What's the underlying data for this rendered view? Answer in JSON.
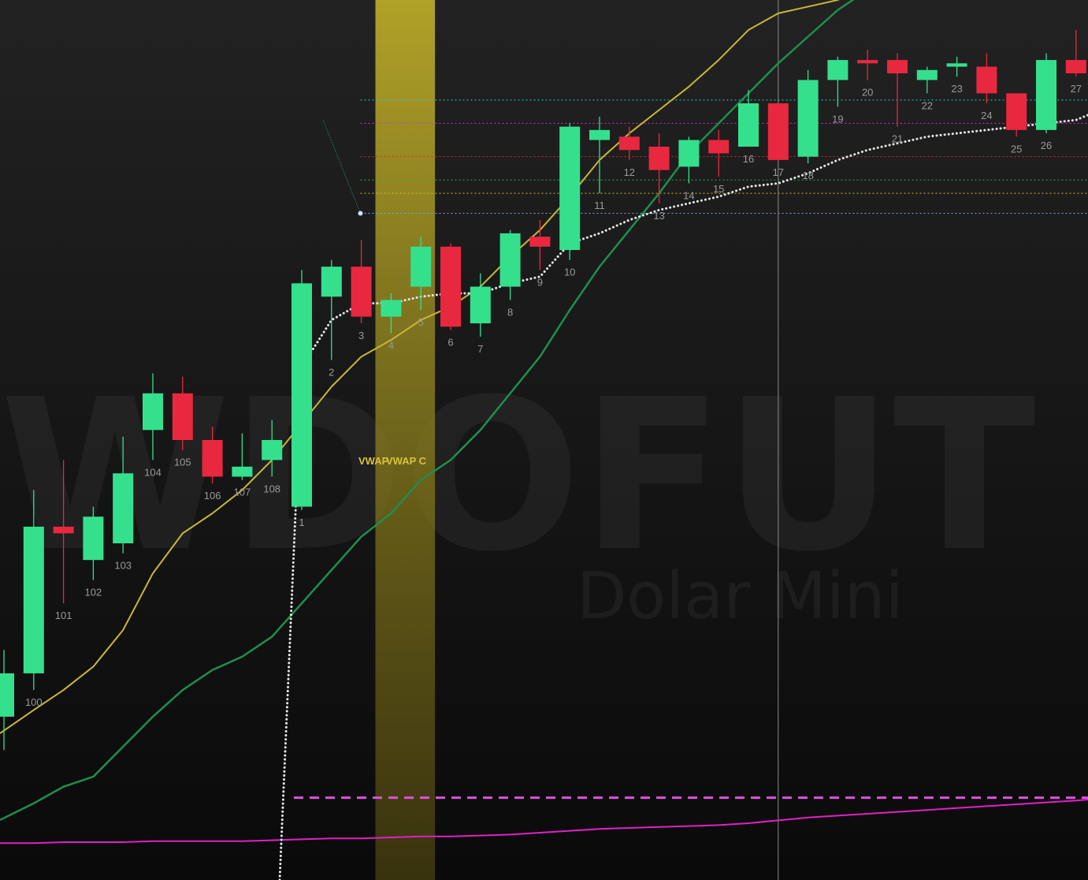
{
  "symbol": {
    "watermark": "WDOFUT 5",
    "subtitle": "Dolar Mini"
  },
  "colors": {
    "up": "#35e08d",
    "down": "#e8283f",
    "ema_fast": "#c7b737",
    "ema_slow": "#1f8e4d",
    "vwap": "#e6e6e6",
    "highlight": "#c9b526",
    "indicator": "#e020c8",
    "indicator_dashed": "#e050e0",
    "blue_segment": "#3a6fd0",
    "cursor": "#8a8a8a"
  },
  "vwap_labels": [
    "VWAP",
    "VWAP C"
  ],
  "chart_data": {
    "type": "candlestick",
    "title": "",
    "bars": [
      {
        "label": "",
        "open": 5013.5,
        "high": 5015.5,
        "low": 5012.5,
        "close": 5014.8
      },
      {
        "label": "100",
        "open": 5014.8,
        "high": 5020.3,
        "low": 5014.3,
        "close": 5019.2
      },
      {
        "label": "101",
        "open": 5019.2,
        "high": 5021.2,
        "low": 5016.9,
        "close": 5019.0
      },
      {
        "label": "102",
        "open": 5018.2,
        "high": 5019.8,
        "low": 5017.6,
        "close": 5019.5
      },
      {
        "label": "103",
        "open": 5018.7,
        "high": 5021.9,
        "low": 5018.4,
        "close": 5020.8
      },
      {
        "label": "104",
        "open": 5022.1,
        "high": 5023.8,
        "low": 5021.2,
        "close": 5023.2
      },
      {
        "label": "105",
        "open": 5023.2,
        "high": 5023.7,
        "low": 5021.5,
        "close": 5021.8
      },
      {
        "label": "106",
        "open": 5021.8,
        "high": 5022.2,
        "low": 5020.5,
        "close": 5020.7
      },
      {
        "label": "107",
        "open": 5020.7,
        "high": 5022.0,
        "low": 5020.6,
        "close": 5021.0
      },
      {
        "label": "108",
        "open": 5021.2,
        "high": 5022.4,
        "low": 5020.7,
        "close": 5021.8
      },
      {
        "label": "1",
        "open": 5019.8,
        "high": 5026.9,
        "low": 5019.7,
        "close": 5026.5
      },
      {
        "label": "2",
        "open": 5026.1,
        "high": 5027.2,
        "low": 5024.2,
        "close": 5027.0
      },
      {
        "label": "3",
        "open": 5027.0,
        "high": 5027.8,
        "low": 5025.3,
        "close": 5025.5
      },
      {
        "label": "4",
        "open": 5025.5,
        "high": 5026.2,
        "low": 5025.0,
        "close": 5026.0
      },
      {
        "label": "5",
        "open": 5026.4,
        "high": 5027.9,
        "low": 5025.7,
        "close": 5027.6
      },
      {
        "label": "6",
        "open": 5027.6,
        "high": 5027.7,
        "low": 5025.1,
        "close": 5025.2
      },
      {
        "label": "7",
        "open": 5025.3,
        "high": 5026.8,
        "low": 5024.9,
        "close": 5026.4
      },
      {
        "label": "8",
        "open": 5026.4,
        "high": 5028.1,
        "low": 5026.0,
        "close": 5028.0
      },
      {
        "label": "9",
        "open": 5027.9,
        "high": 5028.4,
        "low": 5026.9,
        "close": 5027.6
      },
      {
        "label": "10",
        "open": 5027.5,
        "high": 5031.3,
        "low": 5027.2,
        "close": 5031.2
      },
      {
        "label": "11",
        "open": 5030.8,
        "high": 5031.5,
        "low": 5029.2,
        "close": 5031.1
      },
      {
        "label": "12",
        "open": 5030.9,
        "high": 5031.2,
        "low": 5030.2,
        "close": 5030.5
      },
      {
        "label": "13",
        "open": 5030.6,
        "high": 5031.0,
        "low": 5028.9,
        "close": 5029.9
      },
      {
        "label": "14",
        "open": 5030.0,
        "high": 5030.9,
        "low": 5029.5,
        "close": 5030.8
      },
      {
        "label": "15",
        "open": 5030.8,
        "high": 5031.1,
        "low": 5029.7,
        "close": 5030.4
      },
      {
        "label": "16",
        "open": 5030.6,
        "high": 5032.3,
        "low": 5030.6,
        "close": 5031.9
      },
      {
        "label": "17",
        "open": 5031.9,
        "high": 5031.9,
        "low": 5030.2,
        "close": 5030.2
      },
      {
        "label": "18",
        "open": 5030.3,
        "high": 5032.9,
        "low": 5030.1,
        "close": 5032.6
      },
      {
        "label": "19",
        "open": 5032.6,
        "high": 5033.3,
        "low": 5031.8,
        "close": 5033.2
      },
      {
        "label": "20",
        "open": 5033.2,
        "high": 5033.5,
        "low": 5032.6,
        "close": 5033.1
      },
      {
        "label": "21",
        "open": 5033.2,
        "high": 5033.4,
        "low": 5031.2,
        "close": 5032.8
      },
      {
        "label": "22",
        "open": 5032.6,
        "high": 5033.0,
        "low": 5032.2,
        "close": 5032.9
      },
      {
        "label": "23",
        "open": 5033.0,
        "high": 5033.3,
        "low": 5032.7,
        "close": 5033.1
      },
      {
        "label": "24",
        "open": 5033.0,
        "high": 5033.4,
        "low": 5031.9,
        "close": 5032.2
      },
      {
        "label": "25",
        "open": 5032.2,
        "high": 5032.2,
        "low": 5030.9,
        "close": 5031.1
      },
      {
        "label": "26",
        "open": 5031.1,
        "high": 5033.4,
        "low": 5031.0,
        "close": 5033.2
      },
      {
        "label": "27",
        "open": 5033.2,
        "high": 5034.1,
        "low": 5032.7,
        "close": 5032.8
      }
    ],
    "ema_fast": [
      5013.0,
      5013.7,
      5014.3,
      5015.0,
      5016.1,
      5017.8,
      5019.0,
      5019.6,
      5020.3,
      5021.2,
      5022.3,
      5023.4,
      5024.3,
      5024.8,
      5025.4,
      5025.8,
      5026.4,
      5027.3,
      5028.1,
      5029.1,
      5030.2,
      5031.0,
      5031.7,
      5032.4,
      5033.2,
      5034.1,
      5034.6,
      5034.8,
      5035.0,
      5035.4,
      5035.8,
      5036.2,
      5036.7,
      5037.0,
      5037.2,
      5037.6,
      5037.7
    ],
    "ema_slow": [
      5010.4,
      5010.9,
      5011.4,
      5011.7,
      5012.6,
      5013.5,
      5014.3,
      5014.9,
      5015.3,
      5015.9,
      5016.9,
      5017.9,
      5018.9,
      5019.6,
      5020.6,
      5021.2,
      5022.1,
      5023.2,
      5024.3,
      5025.7,
      5027.0,
      5028.1,
      5029.2,
      5030.4,
      5031.3,
      5032.2,
      5033.1,
      5033.9,
      5034.7,
      5035.3,
      5035.9,
      5036.7,
      5037.4,
      5038.0,
      5038.4,
      5039.1,
      5039.5
    ],
    "vwap": [
      null,
      null,
      null,
      null,
      null,
      null,
      null,
      null,
      null,
      null,
      5024.0,
      5025.4,
      5025.9,
      5025.9,
      5026.1,
      5026.2,
      5026.2,
      5026.5,
      5026.7,
      5027.7,
      5028.0,
      5028.4,
      5028.7,
      5028.9,
      5029.1,
      5029.4,
      5029.5,
      5029.8,
      5030.2,
      5030.5,
      5030.7,
      5030.9,
      5031.0,
      5031.1,
      5031.2,
      5031.3,
      5031.4
    ],
    "levels": [
      {
        "price": 5032.0,
        "color": "#39c5c5"
      },
      {
        "price": 5031.3,
        "color": "#c53bc5"
      },
      {
        "price": 5030.3,
        "color": "#c83030"
      },
      {
        "price": 5029.6,
        "color": "#2fae38"
      },
      {
        "price": 5029.2,
        "color": "#c8c428"
      },
      {
        "price": 5028.6,
        "color": "#7fa7cf"
      }
    ],
    "indicator": {
      "dashed_level": 0.82,
      "series": [
        0.34,
        0.34,
        0.35,
        0.35,
        0.35,
        0.36,
        0.36,
        0.36,
        0.36,
        0.37,
        0.38,
        0.39,
        0.39,
        0.4,
        0.41,
        0.41,
        0.42,
        0.43,
        0.45,
        0.47,
        0.49,
        0.5,
        0.51,
        0.52,
        0.53,
        0.55,
        0.58,
        0.61,
        0.63,
        0.65,
        0.67,
        0.69,
        0.71,
        0.73,
        0.75,
        0.77,
        0.79
      ],
      "range": [
        0,
        1
      ]
    },
    "highlight_bar": "4",
    "cursor_bar": "17",
    "price_range": [
      5008.6,
      5035.0
    ]
  }
}
